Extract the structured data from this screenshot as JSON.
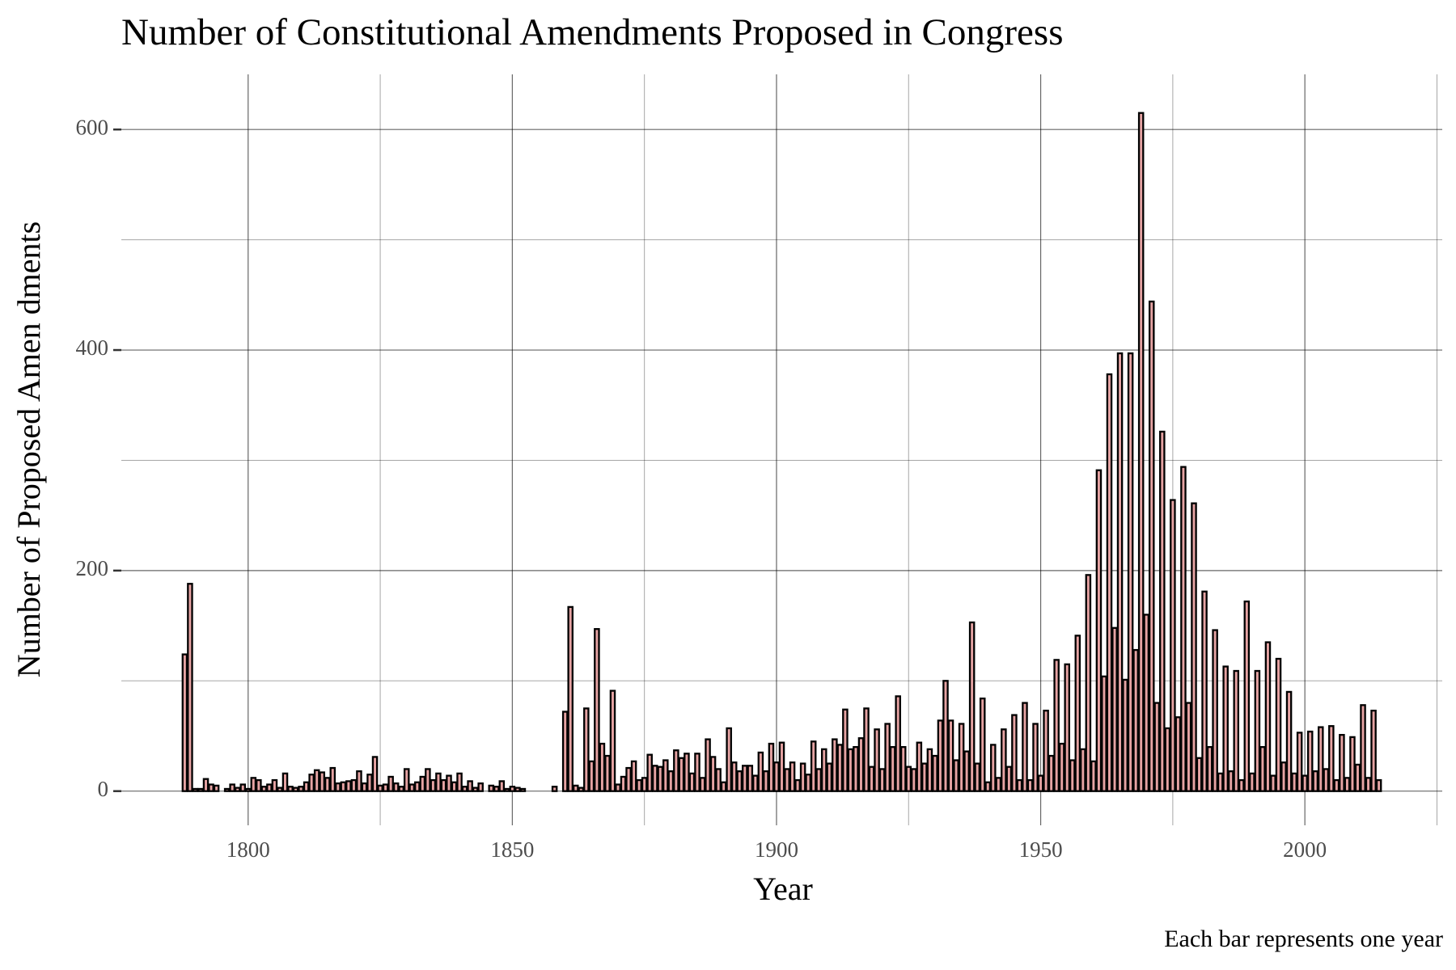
{
  "chart_data": {
    "type": "bar",
    "title": "Number of Constitutional Amendments Proposed in Congress",
    "x_label": "Year",
    "y_label": "Number of Proposed Amen dments",
    "caption": "Each bar represents one year",
    "fill": "#e6a3a3",
    "outline": "#000000",
    "grid": true,
    "xlim": [
      1776,
      2026
    ],
    "ylim": [
      -31,
      650
    ],
    "xticks": [
      1800,
      1850,
      1900,
      1950,
      2000
    ],
    "yticks": [
      0,
      200,
      400,
      600
    ],
    "x": [
      1788,
      1789,
      1790,
      1791,
      1792,
      1793,
      1794,
      1795,
      1796,
      1797,
      1798,
      1799,
      1800,
      1801,
      1802,
      1803,
      1804,
      1805,
      1806,
      1807,
      1808,
      1809,
      1810,
      1811,
      1812,
      1813,
      1814,
      1815,
      1816,
      1817,
      1818,
      1819,
      1820,
      1821,
      1822,
      1823,
      1824,
      1825,
      1826,
      1827,
      1828,
      1829,
      1830,
      1831,
      1832,
      1833,
      1834,
      1835,
      1836,
      1837,
      1838,
      1839,
      1840,
      1841,
      1842,
      1843,
      1844,
      1845,
      1846,
      1847,
      1848,
      1849,
      1850,
      1851,
      1852,
      1853,
      1854,
      1855,
      1856,
      1857,
      1858,
      1859,
      1860,
      1861,
      1862,
      1863,
      1864,
      1865,
      1866,
      1867,
      1868,
      1869,
      1870,
      1871,
      1872,
      1873,
      1874,
      1875,
      1876,
      1877,
      1878,
      1879,
      1880,
      1881,
      1882,
      1883,
      1884,
      1885,
      1886,
      1887,
      1888,
      1889,
      1890,
      1891,
      1892,
      1893,
      1894,
      1895,
      1896,
      1897,
      1898,
      1899,
      1900,
      1901,
      1902,
      1903,
      1904,
      1905,
      1906,
      1907,
      1908,
      1909,
      1910,
      1911,
      1912,
      1913,
      1914,
      1915,
      1916,
      1917,
      1918,
      1919,
      1920,
      1921,
      1922,
      1923,
      1924,
      1925,
      1926,
      1927,
      1928,
      1929,
      1930,
      1931,
      1932,
      1933,
      1934,
      1935,
      1936,
      1937,
      1938,
      1939,
      1940,
      1941,
      1942,
      1943,
      1944,
      1945,
      1946,
      1947,
      1948,
      1949,
      1950,
      1951,
      1952,
      1953,
      1954,
      1955,
      1956,
      1957,
      1958,
      1959,
      1960,
      1961,
      1962,
      1963,
      1964,
      1965,
      1966,
      1967,
      1968,
      1969,
      1970,
      1971,
      1972,
      1973,
      1974,
      1975,
      1976,
      1977,
      1978,
      1979,
      1980,
      1981,
      1982,
      1983,
      1984,
      1985,
      1986,
      1987,
      1988,
      1989,
      1990,
      1991,
      1992,
      1993,
      1994,
      1995,
      1996,
      1997,
      1998,
      1999,
      2000,
      2001,
      2002,
      2003,
      2004,
      2005,
      2006,
      2007,
      2008,
      2009,
      2010,
      2011,
      2012,
      2013,
      2014
    ],
    "values": [
      124,
      188,
      2,
      2,
      11,
      6,
      5,
      0,
      2,
      6,
      3,
      6,
      2,
      12,
      10,
      4,
      6,
      10,
      3,
      16,
      4,
      3,
      4,
      8,
      15,
      19,
      17,
      12,
      21,
      7,
      8,
      9,
      10,
      18,
      7,
      15,
      31,
      5,
      6,
      13,
      7,
      4,
      20,
      6,
      8,
      13,
      20,
      10,
      16,
      10,
      14,
      8,
      16,
      4,
      9,
      3,
      7,
      0,
      5,
      4,
      9,
      2,
      4,
      3,
      2,
      0,
      0,
      0,
      0,
      0,
      4,
      0,
      72,
      167,
      5,
      3,
      75,
      27,
      147,
      43,
      32,
      91,
      6,
      13,
      21,
      27,
      10,
      12,
      33,
      23,
      22,
      28,
      18,
      37,
      30,
      34,
      16,
      34,
      12,
      47,
      31,
      20,
      8,
      57,
      26,
      18,
      23,
      23,
      14,
      35,
      18,
      43,
      26,
      44,
      20,
      26,
      10,
      25,
      15,
      45,
      20,
      38,
      25,
      47,
      42,
      74,
      38,
      40,
      48,
      75,
      22,
      56,
      20,
      61,
      40,
      86,
      40,
      22,
      20,
      44,
      25,
      38,
      32,
      64,
      100,
      64,
      28,
      61,
      36,
      153,
      25,
      84,
      8,
      42,
      12,
      56,
      22,
      69,
      10,
      80,
      10,
      61,
      14,
      73,
      32,
      119,
      43,
      115,
      28,
      141,
      38,
      196,
      27,
      291,
      104,
      378,
      148,
      397,
      101,
      397,
      128,
      615,
      160,
      444,
      80,
      326,
      57,
      264,
      67,
      294,
      80,
      261,
      30,
      181,
      40,
      146,
      16,
      113,
      18,
      109,
      10,
      172,
      16,
      109,
      40,
      135,
      14,
      120,
      26,
      90,
      16,
      53,
      14,
      54,
      18,
      58,
      20,
      59,
      10,
      51,
      12,
      49,
      24,
      78,
      12,
      73,
      10
    ]
  }
}
